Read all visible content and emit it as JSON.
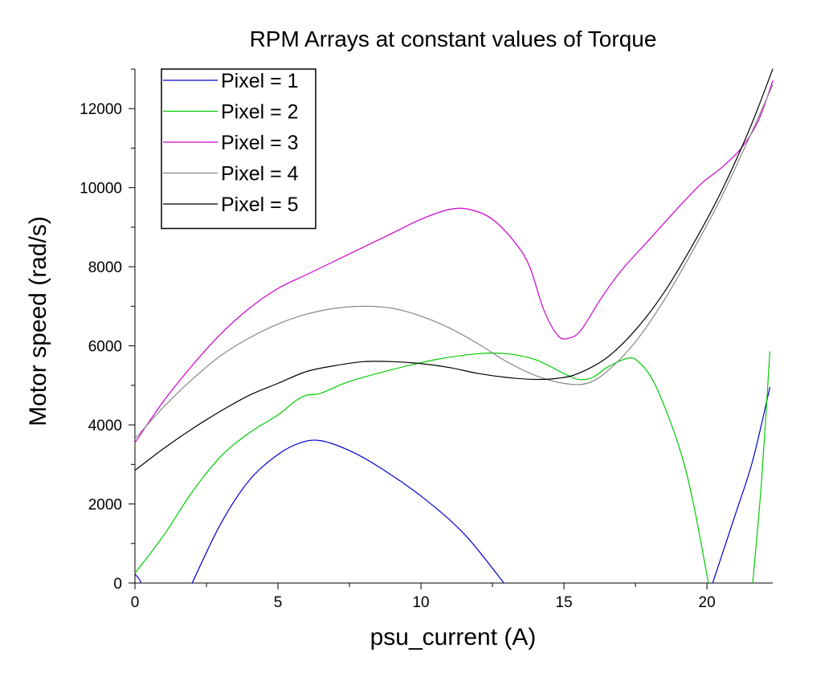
{
  "chart_data": {
    "type": "line",
    "title": "RPM Arrays at constant values of Torque",
    "xlabel": "psu_current (A)",
    "ylabel": "Motor speed (rad/s)",
    "xlim": [
      0,
      22.3
    ],
    "ylim": [
      0,
      13000
    ],
    "xticks": [
      0,
      5,
      10,
      15,
      20
    ],
    "yticks": [
      0,
      2000,
      4000,
      6000,
      8000,
      10000,
      12000
    ],
    "xtick_labels": [
      "0",
      "5",
      "10",
      "15",
      "20"
    ],
    "ytick_labels": [
      "0",
      "2000",
      "4000",
      "6000",
      "8000",
      "10000",
      "12000"
    ],
    "grid": false,
    "legend_position": "top-left",
    "series": [
      {
        "name": "Pixel = 1",
        "color": "#0000cc",
        "segments": [
          [
            [
              0,
              230
            ],
            [
              0.15,
              100
            ],
            [
              0.22,
              0
            ]
          ],
          [
            [
              2.0,
              0
            ],
            [
              3,
              1500
            ],
            [
              4,
              2600
            ],
            [
              5,
              3250
            ],
            [
              5.8,
              3550
            ],
            [
              6.5,
              3600
            ],
            [
              7.5,
              3350
            ],
            [
              8.5,
              2950
            ],
            [
              10,
              2200
            ],
            [
              11.5,
              1250
            ],
            [
              12.9,
              0
            ]
          ],
          [
            [
              20.2,
              0
            ],
            [
              21,
              1750
            ],
            [
              21.6,
              3100
            ],
            [
              22.2,
              4950
            ]
          ]
        ]
      },
      {
        "name": "Pixel = 2",
        "color": "#00cc00",
        "segments": [
          [
            [
              0,
              250
            ],
            [
              1,
              1200
            ],
            [
              2,
              2300
            ],
            [
              3,
              3200
            ],
            [
              4,
              3800
            ],
            [
              5,
              4250
            ],
            [
              5.6,
              4600
            ],
            [
              6,
              4750
            ],
            [
              6.5,
              4800
            ],
            [
              7.5,
              5100
            ],
            [
              9,
              5400
            ],
            [
              10.5,
              5650
            ],
            [
              12,
              5800
            ],
            [
              13,
              5800
            ],
            [
              14,
              5650
            ],
            [
              15,
              5300
            ],
            [
              15.5,
              5150
            ],
            [
              16,
              5200
            ],
            [
              16.5,
              5450
            ],
            [
              17.2,
              5680
            ],
            [
              17.6,
              5600
            ],
            [
              18.2,
              5000
            ],
            [
              19,
              3500
            ],
            [
              19.5,
              2100
            ],
            [
              20.05,
              0
            ]
          ],
          [
            [
              21.6,
              0
            ],
            [
              21.9,
              2500
            ],
            [
              22.2,
              5850
            ]
          ]
        ]
      },
      {
        "name": "Pixel = 3",
        "color": "#cc00cc",
        "segments": [
          [
            [
              0,
              3550
            ],
            [
              1,
              4600
            ],
            [
              2,
              5500
            ],
            [
              3,
              6300
            ],
            [
              4,
              6950
            ],
            [
              5,
              7450
            ],
            [
              6,
              7800
            ],
            [
              7,
              8150
            ],
            [
              8,
              8500
            ],
            [
              9,
              8850
            ],
            [
              10,
              9200
            ],
            [
              11,
              9450
            ],
            [
              11.7,
              9450
            ],
            [
              12.5,
              9200
            ],
            [
              13.3,
              8600
            ],
            [
              13.8,
              8000
            ],
            [
              14.3,
              6900
            ],
            [
              14.8,
              6250
            ],
            [
              15.2,
              6200
            ],
            [
              15.6,
              6400
            ],
            [
              16.3,
              7200
            ],
            [
              17,
              7900
            ],
            [
              18,
              8700
            ],
            [
              19,
              9500
            ],
            [
              19.8,
              10100
            ],
            [
              20.5,
              10500
            ],
            [
              21.2,
              11000
            ],
            [
              21.8,
              11700
            ],
            [
              22.3,
              12700
            ]
          ]
        ]
      },
      {
        "name": "Pixel = 4",
        "color": "#888888",
        "segments": [
          [
            [
              0,
              3650
            ],
            [
              1,
              4450
            ],
            [
              2,
              5150
            ],
            [
              3,
              5750
            ],
            [
              4,
              6200
            ],
            [
              5,
              6550
            ],
            [
              6,
              6800
            ],
            [
              7,
              6950
            ],
            [
              8,
              7000
            ],
            [
              9,
              6950
            ],
            [
              10,
              6750
            ],
            [
              11,
              6450
            ],
            [
              12,
              6050
            ],
            [
              13,
              5600
            ],
            [
              14,
              5250
            ],
            [
              15,
              5050
            ],
            [
              15.8,
              5050
            ],
            [
              16.5,
              5350
            ],
            [
              17.5,
              6100
            ],
            [
              18.5,
              7150
            ],
            [
              19.5,
              8400
            ],
            [
              20.5,
              9750
            ],
            [
              21.5,
              11300
            ],
            [
              22.3,
              12600
            ]
          ]
        ]
      },
      {
        "name": "Pixel = 5",
        "color": "#000000",
        "segments": [
          [
            [
              0,
              2850
            ],
            [
              1,
              3400
            ],
            [
              2,
              3900
            ],
            [
              3,
              4350
            ],
            [
              4,
              4750
            ],
            [
              5,
              5050
            ],
            [
              6,
              5350
            ],
            [
              7,
              5500
            ],
            [
              8,
              5600
            ],
            [
              9,
              5600
            ],
            [
              10,
              5550
            ],
            [
              11,
              5450
            ],
            [
              12,
              5300
            ],
            [
              13,
              5200
            ],
            [
              14,
              5150
            ],
            [
              14.8,
              5180
            ],
            [
              15.5,
              5300
            ],
            [
              16.5,
              5700
            ],
            [
              17.5,
              6400
            ],
            [
              18.5,
              7350
            ],
            [
              19.5,
              8550
            ],
            [
              20.5,
              9900
            ],
            [
              21.5,
              11500
            ],
            [
              22.3,
              13000
            ]
          ]
        ]
      }
    ]
  }
}
